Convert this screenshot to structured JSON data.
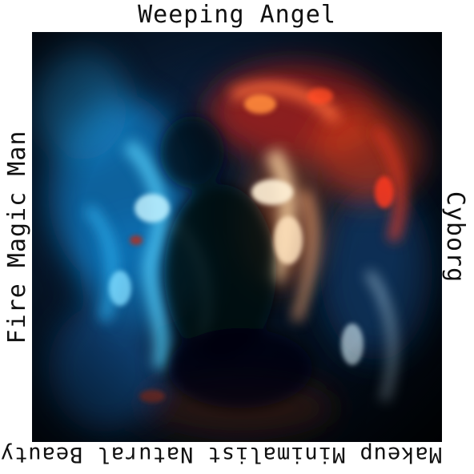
{
  "labels": {
    "top": "Weeping Angel",
    "right": "Cyborg",
    "bottom": "Makeup Minimalist Natural Beauty",
    "left": "Fire Magic Man"
  },
  "artwork": {
    "palette": {
      "background": "#04101c",
      "deep_blue": "#0a2a55",
      "cyan": "#39c8ff",
      "ice": "#bff1ff",
      "fire_red": "#e0301a",
      "ember": "#ff8a3c",
      "cream": "#fff1d6"
    }
  }
}
